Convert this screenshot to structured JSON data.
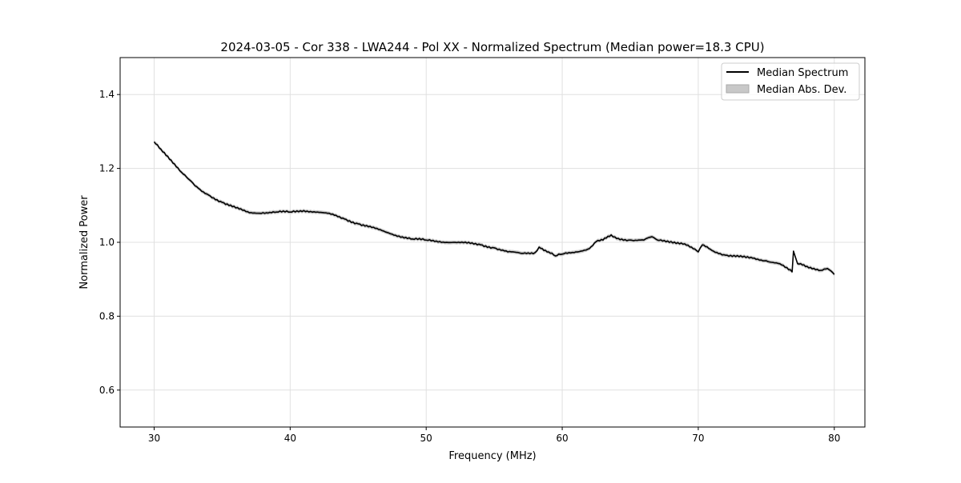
{
  "chart_data": {
    "type": "line",
    "title": "2024-03-05 - Cor 338 - LWA244 - Pol XX - Normalized Spectrum (Median power=18.3 CPU)",
    "xlabel": "Frequency (MHz)",
    "ylabel": "Normalized Power",
    "xlim": [
      27.5,
      82.25
    ],
    "ylim": [
      0.5,
      1.5
    ],
    "xticks": [
      30,
      40,
      50,
      60,
      70,
      80
    ],
    "xtick_labels": [
      "30",
      "40",
      "50",
      "60",
      "70",
      "80"
    ],
    "yticks": [
      0.6,
      0.8,
      1.0,
      1.2,
      1.4
    ],
    "ytick_labels": [
      "0.6",
      "0.8",
      "1.0",
      "1.2",
      "1.4"
    ],
    "grid": true,
    "legend": {
      "position": "top-right",
      "entries": [
        "Median Spectrum",
        "Median Abs. Dev."
      ]
    },
    "colors": {
      "line": "#000000",
      "band": "#c8c8c8",
      "grid": "#e0e0e0"
    },
    "mad_halfwidth": 0.005,
    "series": [
      {
        "name": "Median Spectrum",
        "x": [
          30,
          30.5,
          31,
          31.5,
          32,
          32.5,
          33,
          33.5,
          34,
          35,
          36,
          37,
          38,
          39,
          40,
          41,
          42,
          43,
          44,
          45,
          46,
          47,
          48,
          49,
          50,
          51,
          52,
          53,
          54,
          55,
          56,
          57,
          58,
          58.3,
          59,
          59.5,
          60,
          61,
          62,
          62.5,
          63,
          63.6,
          64,
          65,
          66,
          66.6,
          67,
          68,
          69,
          70,
          70.3,
          71,
          72,
          73,
          74,
          75,
          76,
          76.9,
          77,
          77.3,
          78,
          79,
          79.5,
          80
        ],
        "y": [
          1.272,
          1.252,
          1.233,
          1.212,
          1.19,
          1.172,
          1.153,
          1.138,
          1.128,
          1.108,
          1.093,
          1.08,
          1.08,
          1.082,
          1.082,
          1.086,
          1.082,
          1.076,
          1.063,
          1.05,
          1.04,
          1.028,
          1.017,
          1.009,
          1.006,
          1.002,
          1.0,
          0.998,
          0.993,
          0.985,
          0.974,
          0.97,
          0.972,
          0.987,
          0.974,
          0.963,
          0.968,
          0.974,
          0.983,
          1.002,
          1.006,
          1.02,
          1.01,
          1.006,
          1.006,
          1.015,
          1.006,
          1.002,
          0.996,
          0.974,
          0.993,
          0.978,
          0.965,
          0.961,
          0.957,
          0.95,
          0.942,
          0.92,
          0.976,
          0.942,
          0.935,
          0.924,
          0.929,
          0.913
        ]
      }
    ]
  }
}
